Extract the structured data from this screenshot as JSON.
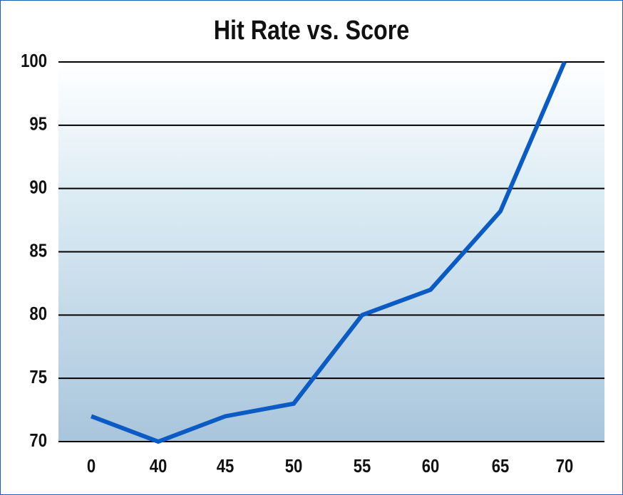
{
  "chart_data": {
    "type": "line",
    "title": "Hit Rate vs. Score",
    "categories": [
      "0",
      "40",
      "45",
      "50",
      "55",
      "60",
      "65",
      "70"
    ],
    "series": [
      {
        "name": "Hit Rate",
        "color": "#0a5bc4",
        "values": [
          72,
          70,
          72,
          73,
          80,
          82,
          88.2,
          100
        ]
      }
    ],
    "ylim": [
      70,
      100
    ],
    "yticks": [
      70,
      75,
      80,
      85,
      90,
      95,
      100
    ],
    "grid": true
  }
}
